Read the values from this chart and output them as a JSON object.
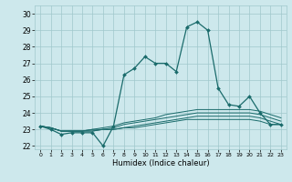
{
  "xlabel": "Humidex (Indice chaleur)",
  "xlim": [
    -0.5,
    23.5
  ],
  "ylim": [
    21.8,
    30.5
  ],
  "yticks": [
    22,
    23,
    24,
    25,
    26,
    27,
    28,
    29,
    30
  ],
  "xticks": [
    0,
    1,
    2,
    3,
    4,
    5,
    6,
    7,
    8,
    9,
    10,
    11,
    12,
    13,
    14,
    15,
    16,
    17,
    18,
    19,
    20,
    21,
    22,
    23
  ],
  "bg_color": "#cde8ec",
  "grid_color": "#a0c8cc",
  "line_color": "#1a6b6b",
  "main_line": [
    23.2,
    23.0,
    22.7,
    22.8,
    22.8,
    22.8,
    22.0,
    23.2,
    26.3,
    26.7,
    27.4,
    27.0,
    27.0,
    26.5,
    29.2,
    29.5,
    29.0,
    25.5,
    24.5,
    24.4,
    25.0,
    24.0,
    23.3,
    23.3
  ],
  "line2": [
    23.2,
    23.1,
    22.9,
    22.9,
    22.9,
    23.0,
    23.1,
    23.2,
    23.4,
    23.5,
    23.6,
    23.7,
    23.9,
    24.0,
    24.1,
    24.2,
    24.2,
    24.2,
    24.2,
    24.2,
    24.2,
    24.1,
    23.9,
    23.7
  ],
  "line3": [
    23.2,
    23.1,
    22.9,
    22.9,
    22.9,
    23.0,
    23.0,
    23.1,
    23.3,
    23.4,
    23.5,
    23.6,
    23.7,
    23.8,
    23.9,
    24.0,
    24.0,
    24.0,
    24.0,
    24.0,
    24.0,
    23.9,
    23.7,
    23.5
  ],
  "line4": [
    23.2,
    23.1,
    22.9,
    22.9,
    22.9,
    22.9,
    23.0,
    23.0,
    23.1,
    23.2,
    23.3,
    23.4,
    23.5,
    23.6,
    23.7,
    23.8,
    23.8,
    23.8,
    23.8,
    23.8,
    23.8,
    23.7,
    23.5,
    23.3
  ],
  "line5": [
    23.2,
    23.1,
    22.9,
    22.9,
    22.9,
    22.9,
    23.0,
    23.0,
    23.1,
    23.1,
    23.2,
    23.3,
    23.4,
    23.5,
    23.6,
    23.6,
    23.6,
    23.6,
    23.6,
    23.6,
    23.6,
    23.5,
    23.3,
    23.3
  ]
}
